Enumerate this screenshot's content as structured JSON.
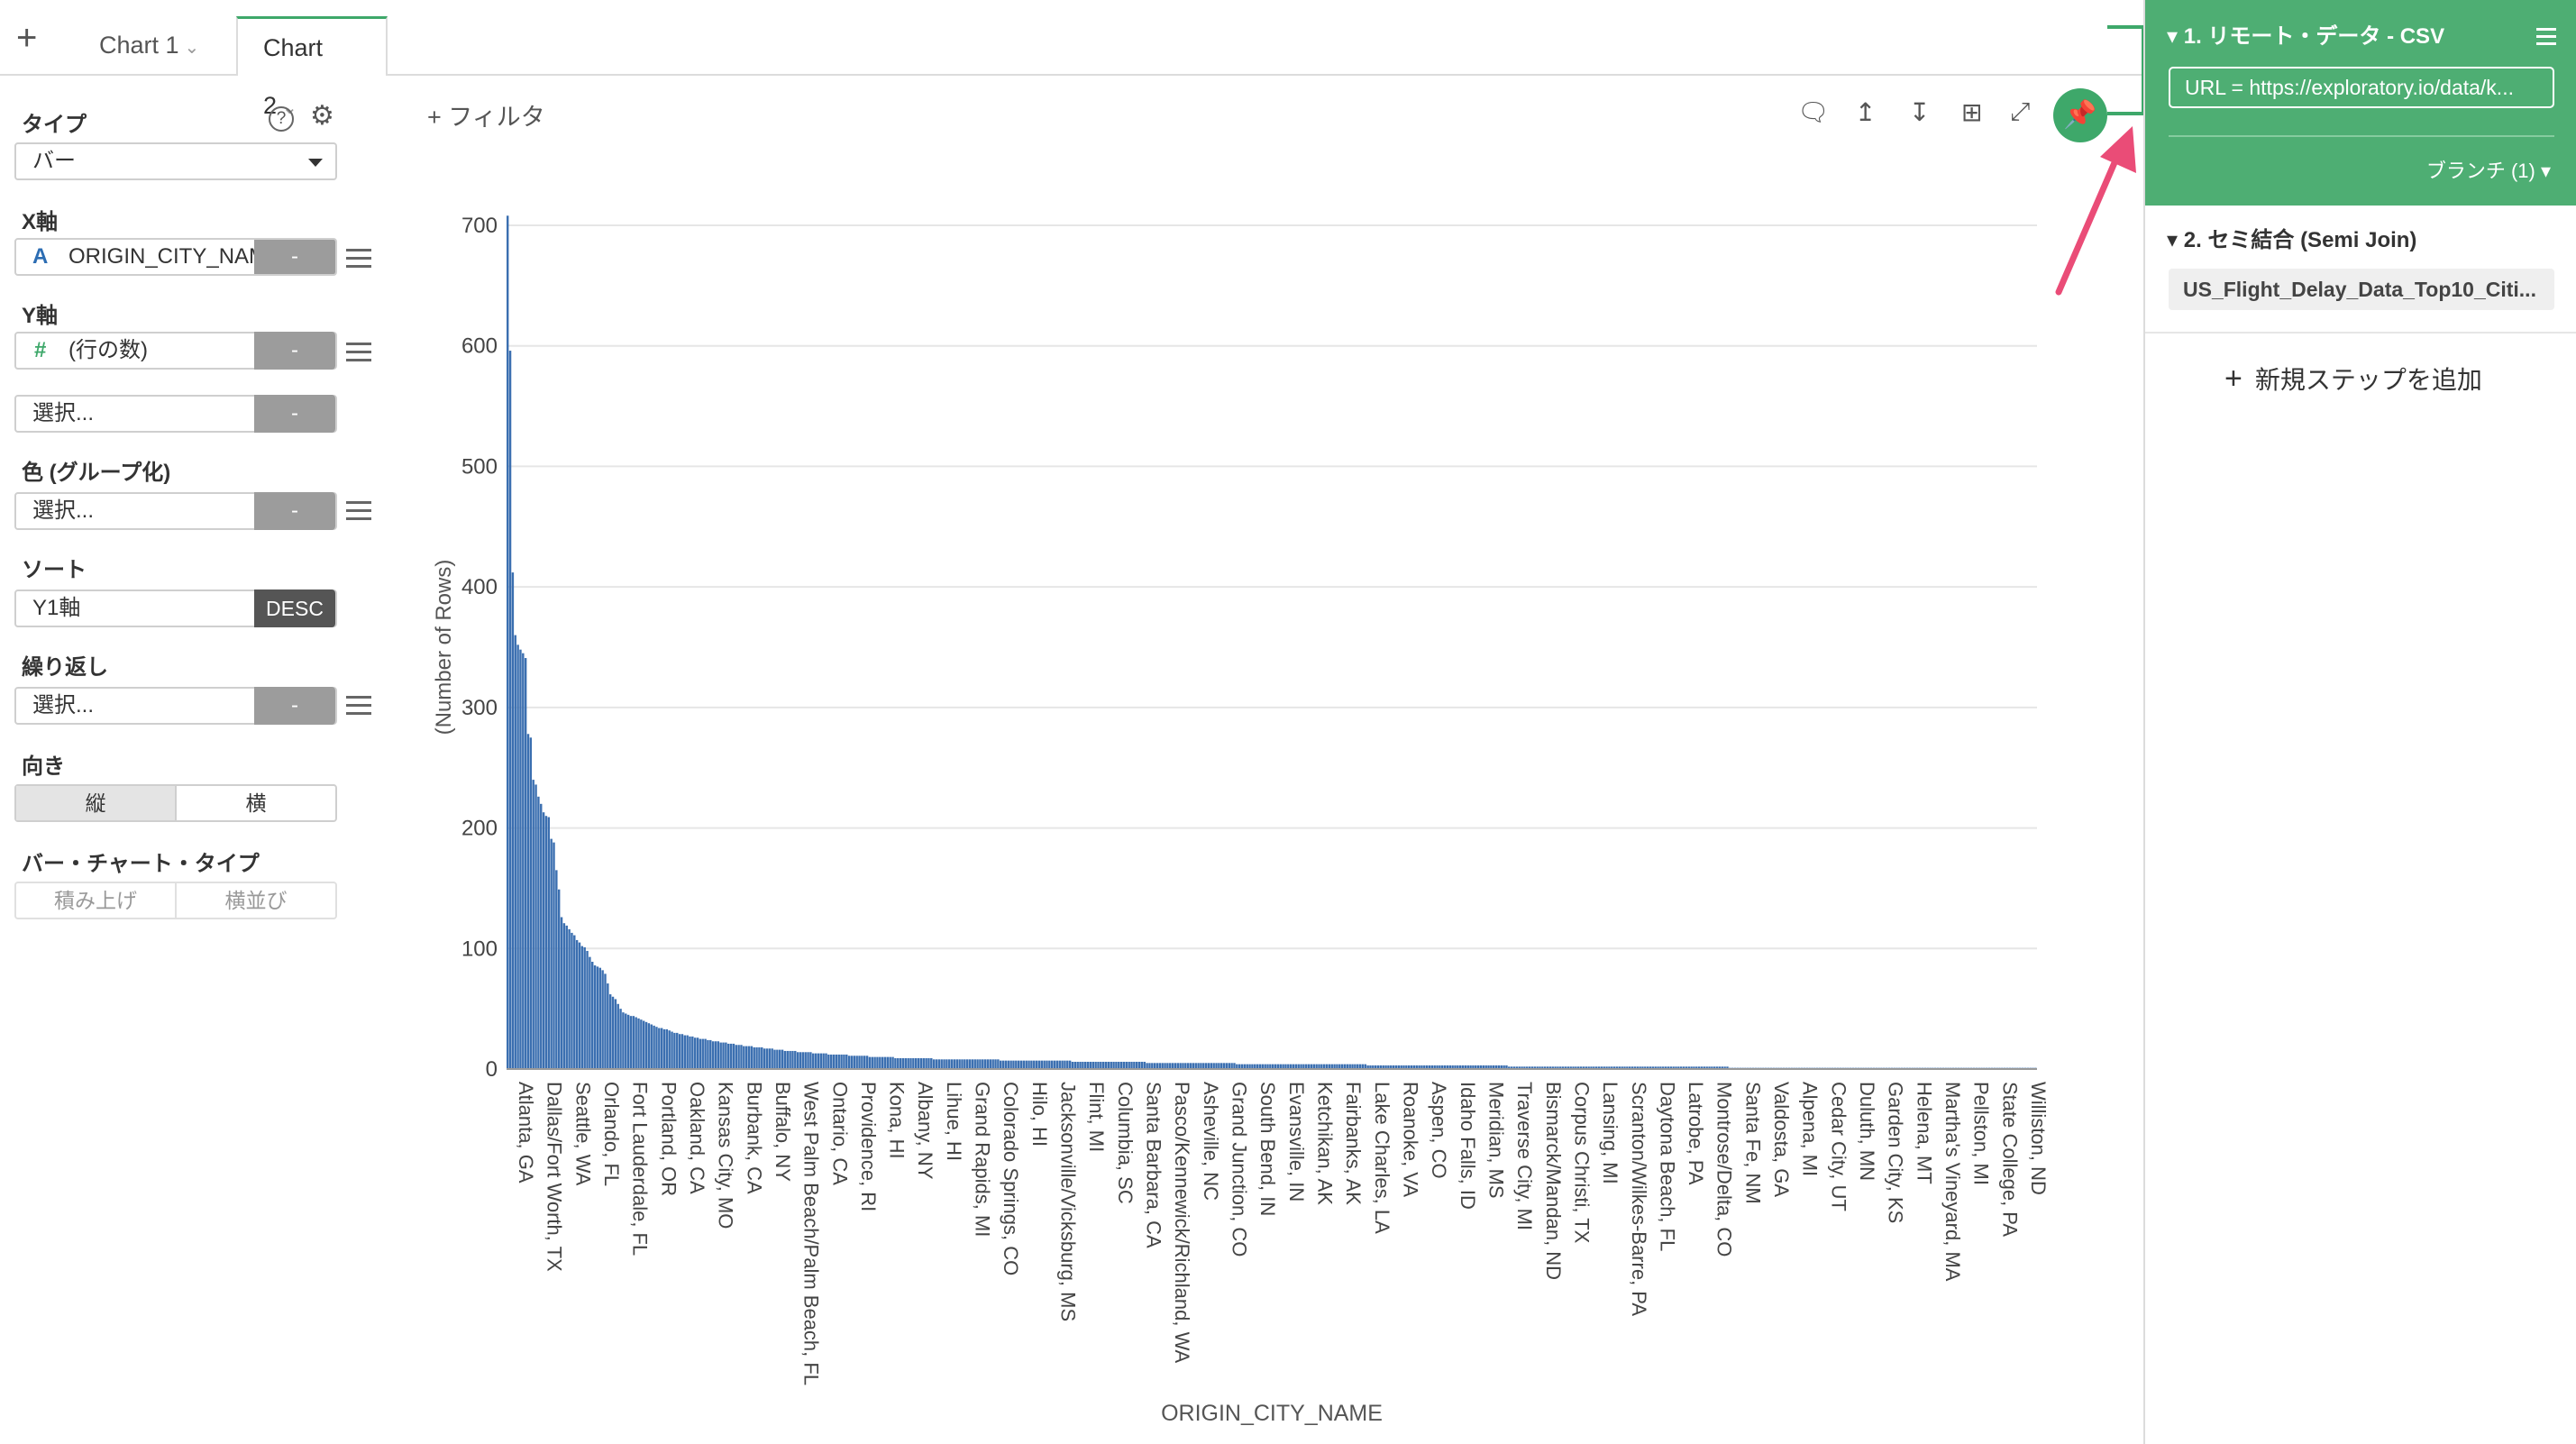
{
  "tabs": {
    "add_label": "+",
    "items": [
      {
        "label": "Chart 1"
      },
      {
        "label": "Chart 2"
      }
    ]
  },
  "left_panel": {
    "type_label": "タイプ",
    "type_value": "バー",
    "x_axis_label": "X軸",
    "x_axis_value": "ORIGIN_CITY_NAME",
    "x_axis_type_icon": "A",
    "y_axis_label": "Y軸",
    "y_axis_value": "(行の数)",
    "y_axis_type_icon": "#",
    "y2_placeholder": "選択...",
    "color_label": "色 (グループ化)",
    "color_placeholder": "選択...",
    "sort_label": "ソート",
    "sort_value": "Y1軸",
    "sort_order": "DESC",
    "repeat_label": "繰り返し",
    "repeat_placeholder": "選択...",
    "orientation_label": "向き",
    "orientation_options": [
      "縦",
      "横"
    ],
    "bar_type_label": "バー・チャート・タイプ",
    "bar_type_options": [
      "積み上げ",
      "横並び"
    ],
    "minus_label": "-",
    "help_icon_text": "?"
  },
  "toolbar": {
    "filter_label": "+ フィルタ"
  },
  "right_panel": {
    "step1_title": "1. リモート・データ - CSV",
    "step1_url": "URL = https://exploratory.io/data/k...",
    "step1_branch": "ブランチ (1)",
    "step2_title": "2. セミ結合 (Semi Join)",
    "step2_item": "US_Flight_Delay_Data_Top10_Citi...",
    "add_step_label": "新規ステップを追加"
  },
  "colors": {
    "accent": "#4eae73",
    "bar": "#3b6fb0",
    "arrow": "#ea4c77"
  },
  "chart_data": {
    "type": "bar",
    "xlabel": "ORIGIN_CITY_NAME",
    "ylabel": "(Number of Rows)",
    "ylim": [
      0,
      700
    ],
    "yticks": [
      0,
      100,
      200,
      300,
      400,
      500,
      600,
      700
    ],
    "grid": true,
    "visible_tick_labels": [
      "Atlanta, GA",
      "Dallas/Fort Worth, TX",
      "Seattle, WA",
      "Orlando, FL",
      "Fort Lauderdale, FL",
      "Portland, OR",
      "Oakland, CA",
      "Kansas City, MO",
      "Burbank, CA",
      "Buffalo, NY",
      "West Palm Beach/Palm Beach, FL",
      "Ontario, CA",
      "Providence, RI",
      "Kona, HI",
      "Albany, NY",
      "Lihue, HI",
      "Grand Rapids, MI",
      "Colorado Springs, CO",
      "Hilo, HI",
      "Jacksonville/Vicksburg, MS",
      "Flint, MI",
      "Columbia, SC",
      "Santa Barbara, CA",
      "Pasco/Kennewick/Richland, WA",
      "Asheville, NC",
      "Grand Junction, CO",
      "South Bend, IN",
      "Evansville, IN",
      "Ketchikan, AK",
      "Fairbanks, AK",
      "Lake Charles, LA",
      "Roanoke, VA",
      "Aspen, CO",
      "Idaho Falls, ID",
      "Meridian, MS",
      "Traverse City, MI",
      "Bismarck/Mandan, ND",
      "Corpus Christi, TX",
      "Lansing, MI",
      "Scranton/Wilkes-Barre, PA",
      "Daytona Beach, FL",
      "Latrobe, PA",
      "Montrose/Delta, CO",
      "Santa Fe, NM",
      "Valdosta, GA",
      "Alpena, MI",
      "Cedar City, UT",
      "Duluth, MN",
      "Garden City, KS",
      "Helena, MT",
      "Martha's Vineyard, MA",
      "Pellston, MI",
      "State College, PA",
      "Williston, ND"
    ],
    "values": [
      708,
      596,
      412,
      360,
      352,
      348,
      345,
      341,
      278,
      275,
      240,
      236,
      226,
      220,
      213,
      210,
      209,
      191,
      188,
      165,
      149,
      126,
      121,
      119,
      116,
      113,
      111,
      107,
      105,
      102,
      101,
      98,
      93,
      89,
      86,
      85,
      84,
      82,
      79,
      71,
      62,
      60,
      58,
      54,
      50,
      47,
      46,
      45,
      44,
      44,
      43,
      42,
      41,
      40,
      39,
      38,
      37,
      36,
      35,
      34,
      34,
      33,
      33,
      32,
      31,
      30,
      30,
      29,
      29,
      28,
      28,
      27,
      27,
      26,
      26,
      25,
      25,
      25,
      24,
      24,
      23,
      23,
      23,
      22,
      22,
      22,
      21,
      21,
      21,
      20,
      20,
      20,
      19,
      19,
      19,
      19,
      18,
      18,
      18,
      18,
      17,
      17,
      17,
      17,
      16,
      16,
      16,
      16,
      15,
      15,
      15,
      15,
      15,
      14,
      14,
      14,
      14,
      14,
      14,
      13,
      13,
      13,
      13,
      13,
      13,
      12,
      12,
      12,
      12,
      12,
      12,
      12,
      12,
      11,
      11,
      11,
      11,
      11,
      11,
      11,
      11,
      10,
      10,
      10,
      10,
      10,
      10,
      10,
      10,
      10,
      10,
      9,
      9,
      9,
      9,
      9,
      9,
      9,
      9,
      9,
      9,
      9,
      9,
      9,
      9,
      9,
      8,
      8,
      8,
      8,
      8,
      8,
      8,
      8,
      8,
      8,
      8,
      8,
      8,
      8,
      8,
      8,
      8,
      8,
      8,
      8,
      8,
      8,
      8,
      8,
      8,
      8,
      7,
      7,
      7,
      7,
      7,
      7,
      7,
      7,
      7,
      7,
      7,
      7,
      7,
      7,
      7,
      7,
      7,
      7,
      7,
      7,
      7,
      7,
      7,
      7,
      7,
      7,
      7,
      7,
      6,
      6,
      6,
      6,
      6,
      6,
      6,
      6,
      6,
      6,
      6,
      6,
      6,
      6,
      6,
      6,
      6,
      6,
      6,
      6,
      6,
      6,
      6,
      6,
      6,
      6,
      6,
      6,
      6,
      5,
      5,
      5,
      5,
      5,
      5,
      5,
      5,
      5,
      5,
      5,
      5,
      5,
      5,
      5,
      5,
      5,
      5,
      5,
      5,
      5,
      5,
      5,
      5,
      5,
      5,
      5,
      5,
      5,
      5,
      5,
      5,
      5,
      5,
      5,
      4,
      4,
      4,
      4,
      4,
      4,
      4,
      4,
      4,
      4,
      4,
      4,
      4,
      4,
      4,
      4,
      4,
      4,
      4,
      4,
      4,
      4,
      4,
      4,
      4,
      4,
      4,
      4,
      4,
      4,
      4,
      4,
      4,
      4,
      4,
      4,
      4,
      4,
      4,
      4,
      4,
      4,
      4,
      4,
      4,
      4,
      4,
      4,
      4,
      4,
      4,
      3,
      3,
      3,
      3,
      3,
      3,
      3,
      3,
      3,
      3,
      3,
      3,
      3,
      3,
      3,
      3,
      3,
      3,
      3,
      3,
      3,
      3,
      3,
      3,
      3,
      3,
      3,
      3,
      3,
      3,
      3,
      3,
      3,
      3,
      3,
      3,
      3,
      3,
      3,
      3,
      3,
      3,
      3,
      3,
      3,
      3,
      3,
      3,
      3,
      3,
      3,
      3,
      3,
      3,
      3,
      2,
      2,
      2,
      2,
      2,
      2,
      2,
      2,
      2,
      2,
      2,
      2,
      2,
      2,
      2,
      2,
      2,
      2,
      2,
      2,
      2,
      2,
      2,
      2,
      2,
      2,
      2,
      2,
      2,
      2,
      2,
      2,
      2,
      2,
      2,
      2,
      2,
      2,
      2,
      2,
      2,
      2,
      2,
      2,
      2,
      2,
      2,
      2,
      2,
      2,
      2,
      2,
      2,
      2,
      2,
      2,
      2,
      2,
      2,
      2,
      2,
      2,
      2,
      2,
      2,
      2,
      2,
      2,
      2,
      2,
      2,
      2,
      2,
      2,
      2,
      2,
      2,
      2,
      2,
      2,
      2,
      2,
      2,
      2,
      2,
      2,
      1,
      1,
      1,
      1,
      1,
      1,
      1,
      1,
      1,
      1,
      1,
      1,
      1,
      1,
      1,
      1,
      1,
      1,
      1,
      1,
      1,
      1,
      1,
      1,
      1,
      1,
      1,
      1,
      1,
      1,
      1,
      1,
      1,
      1,
      1,
      1,
      1,
      1,
      1,
      1,
      1,
      1,
      1,
      1,
      1,
      1,
      1,
      1,
      1,
      1,
      1,
      1,
      1,
      1,
      1,
      1,
      1,
      1,
      1,
      1,
      1,
      1,
      1,
      1,
      1,
      1,
      1,
      1,
      1,
      1,
      1,
      1,
      1,
      1,
      1,
      1,
      1,
      1,
      1,
      1,
      1,
      1,
      1,
      1,
      1,
      1,
      1,
      1,
      1,
      1,
      1,
      1,
      1,
      1,
      1,
      1,
      1,
      1,
      1,
      1,
      1,
      1,
      1,
      1,
      1,
      1,
      1,
      1,
      1,
      1,
      1,
      1,
      1,
      1,
      1,
      1,
      1,
      1,
      1,
      1
    ]
  }
}
